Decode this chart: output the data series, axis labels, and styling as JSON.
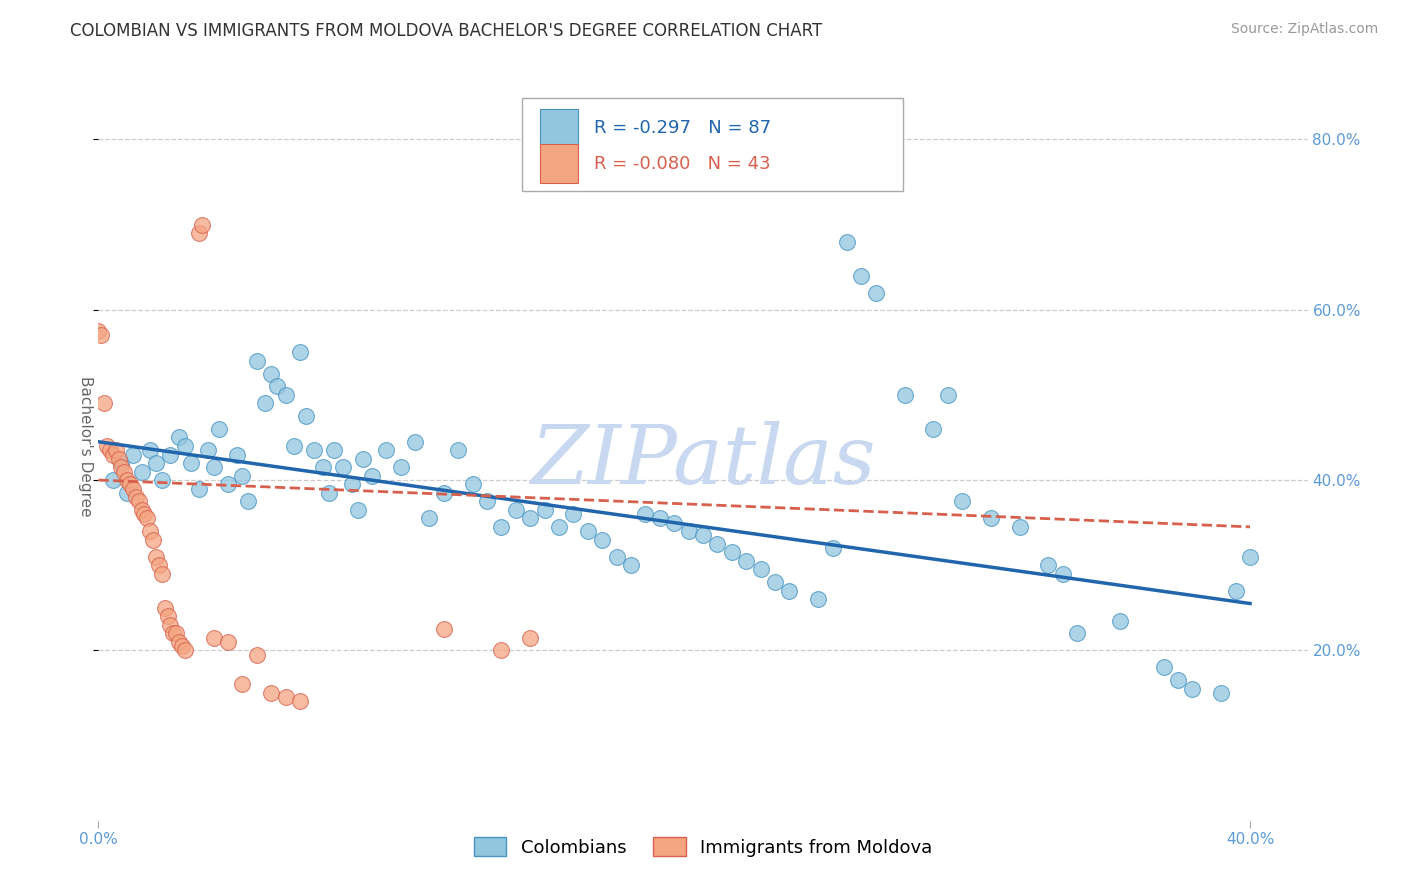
{
  "title": "COLOMBIAN VS IMMIGRANTS FROM MOLDOVA BACHELOR'S DEGREE CORRELATION CHART",
  "source": "Source: ZipAtlas.com",
  "ylabel": "Bachelor's Degree",
  "watermark": "ZIPatlas",
  "xlim": [
    0.0,
    0.42
  ],
  "ylim": [
    0.0,
    0.88
  ],
  "xticks": [
    0.0,
    0.4
  ],
  "yticks": [
    0.2,
    0.4,
    0.6,
    0.8
  ],
  "ytick_labels_left": [
    "",
    "",
    "",
    ""
  ],
  "ytick_labels_right": [
    "20.0%",
    "40.0%",
    "60.0%",
    "80.0%"
  ],
  "xtick_labels": [
    "0.0%",
    "40.0%"
  ],
  "legend_entries": [
    {
      "R": "-0.297",
      "N": "87"
    },
    {
      "R": "-0.080",
      "N": "43"
    }
  ],
  "blue_scatter": [
    [
      0.008,
      0.42
    ],
    [
      0.012,
      0.43
    ],
    [
      0.015,
      0.41
    ],
    [
      0.018,
      0.435
    ],
    [
      0.02,
      0.42
    ],
    [
      0.022,
      0.4
    ],
    [
      0.025,
      0.43
    ],
    [
      0.028,
      0.45
    ],
    [
      0.03,
      0.44
    ],
    [
      0.032,
      0.42
    ],
    [
      0.035,
      0.39
    ],
    [
      0.038,
      0.435
    ],
    [
      0.04,
      0.415
    ],
    [
      0.042,
      0.46
    ],
    [
      0.045,
      0.395
    ],
    [
      0.048,
      0.43
    ],
    [
      0.05,
      0.405
    ],
    [
      0.052,
      0.375
    ],
    [
      0.055,
      0.54
    ],
    [
      0.058,
      0.49
    ],
    [
      0.06,
      0.525
    ],
    [
      0.062,
      0.51
    ],
    [
      0.065,
      0.5
    ],
    [
      0.068,
      0.44
    ],
    [
      0.07,
      0.55
    ],
    [
      0.072,
      0.475
    ],
    [
      0.075,
      0.435
    ],
    [
      0.078,
      0.415
    ],
    [
      0.08,
      0.385
    ],
    [
      0.082,
      0.435
    ],
    [
      0.085,
      0.415
    ],
    [
      0.088,
      0.395
    ],
    [
      0.09,
      0.365
    ],
    [
      0.092,
      0.425
    ],
    [
      0.095,
      0.405
    ],
    [
      0.1,
      0.435
    ],
    [
      0.105,
      0.415
    ],
    [
      0.11,
      0.445
    ],
    [
      0.115,
      0.355
    ],
    [
      0.12,
      0.385
    ],
    [
      0.125,
      0.435
    ],
    [
      0.13,
      0.395
    ],
    [
      0.135,
      0.375
    ],
    [
      0.14,
      0.345
    ],
    [
      0.145,
      0.365
    ],
    [
      0.15,
      0.355
    ],
    [
      0.155,
      0.365
    ],
    [
      0.16,
      0.345
    ],
    [
      0.165,
      0.36
    ],
    [
      0.17,
      0.34
    ],
    [
      0.175,
      0.33
    ],
    [
      0.18,
      0.31
    ],
    [
      0.185,
      0.3
    ],
    [
      0.19,
      0.36
    ],
    [
      0.195,
      0.355
    ],
    [
      0.2,
      0.35
    ],
    [
      0.205,
      0.34
    ],
    [
      0.21,
      0.335
    ],
    [
      0.215,
      0.325
    ],
    [
      0.22,
      0.315
    ],
    [
      0.225,
      0.305
    ],
    [
      0.23,
      0.295
    ],
    [
      0.235,
      0.28
    ],
    [
      0.24,
      0.27
    ],
    [
      0.25,
      0.26
    ],
    [
      0.255,
      0.32
    ],
    [
      0.26,
      0.68
    ],
    [
      0.265,
      0.64
    ],
    [
      0.27,
      0.62
    ],
    [
      0.28,
      0.5
    ],
    [
      0.29,
      0.46
    ],
    [
      0.295,
      0.5
    ],
    [
      0.3,
      0.375
    ],
    [
      0.31,
      0.355
    ],
    [
      0.32,
      0.345
    ],
    [
      0.33,
      0.3
    ],
    [
      0.335,
      0.29
    ],
    [
      0.34,
      0.22
    ],
    [
      0.355,
      0.235
    ],
    [
      0.37,
      0.18
    ],
    [
      0.375,
      0.165
    ],
    [
      0.38,
      0.155
    ],
    [
      0.39,
      0.15
    ],
    [
      0.395,
      0.27
    ],
    [
      0.4,
      0.31
    ],
    [
      0.005,
      0.4
    ],
    [
      0.01,
      0.385
    ]
  ],
  "pink_scatter": [
    [
      0.0,
      0.575
    ],
    [
      0.001,
      0.57
    ],
    [
      0.002,
      0.49
    ],
    [
      0.003,
      0.44
    ],
    [
      0.004,
      0.435
    ],
    [
      0.005,
      0.43
    ],
    [
      0.006,
      0.435
    ],
    [
      0.007,
      0.425
    ],
    [
      0.008,
      0.415
    ],
    [
      0.009,
      0.41
    ],
    [
      0.01,
      0.4
    ],
    [
      0.011,
      0.395
    ],
    [
      0.012,
      0.39
    ],
    [
      0.013,
      0.38
    ],
    [
      0.014,
      0.375
    ],
    [
      0.015,
      0.365
    ],
    [
      0.016,
      0.36
    ],
    [
      0.017,
      0.355
    ],
    [
      0.018,
      0.34
    ],
    [
      0.019,
      0.33
    ],
    [
      0.02,
      0.31
    ],
    [
      0.021,
      0.3
    ],
    [
      0.022,
      0.29
    ],
    [
      0.023,
      0.25
    ],
    [
      0.024,
      0.24
    ],
    [
      0.025,
      0.23
    ],
    [
      0.026,
      0.22
    ],
    [
      0.027,
      0.22
    ],
    [
      0.028,
      0.21
    ],
    [
      0.029,
      0.205
    ],
    [
      0.03,
      0.2
    ],
    [
      0.035,
      0.69
    ],
    [
      0.036,
      0.7
    ],
    [
      0.04,
      0.215
    ],
    [
      0.045,
      0.21
    ],
    [
      0.05,
      0.16
    ],
    [
      0.12,
      0.225
    ],
    [
      0.14,
      0.2
    ],
    [
      0.15,
      0.215
    ],
    [
      0.055,
      0.195
    ],
    [
      0.06,
      0.15
    ],
    [
      0.065,
      0.145
    ],
    [
      0.07,
      0.14
    ]
  ],
  "blue_line": [
    [
      0.0,
      0.445
    ],
    [
      0.4,
      0.255
    ]
  ],
  "pink_line": [
    [
      0.0,
      0.4
    ],
    [
      0.4,
      0.345
    ]
  ],
  "blue_line_color": "#2166ac",
  "pink_line_color": "#d6604d",
  "scatter_blue_color": "#92c5de",
  "scatter_pink_color": "#f4a582",
  "scatter_blue_edge": "#4393c3",
  "scatter_pink_edge": "#d6604d",
  "grid_color": "#cccccc",
  "tick_label_color": "#5b9bd5",
  "ylabel_color": "#666666",
  "background_color": "#ffffff",
  "watermark_color": "#c8d8f0",
  "title_fontsize": 12,
  "source_fontsize": 10,
  "axis_label_fontsize": 11,
  "tick_fontsize": 11,
  "legend_fontsize": 13
}
